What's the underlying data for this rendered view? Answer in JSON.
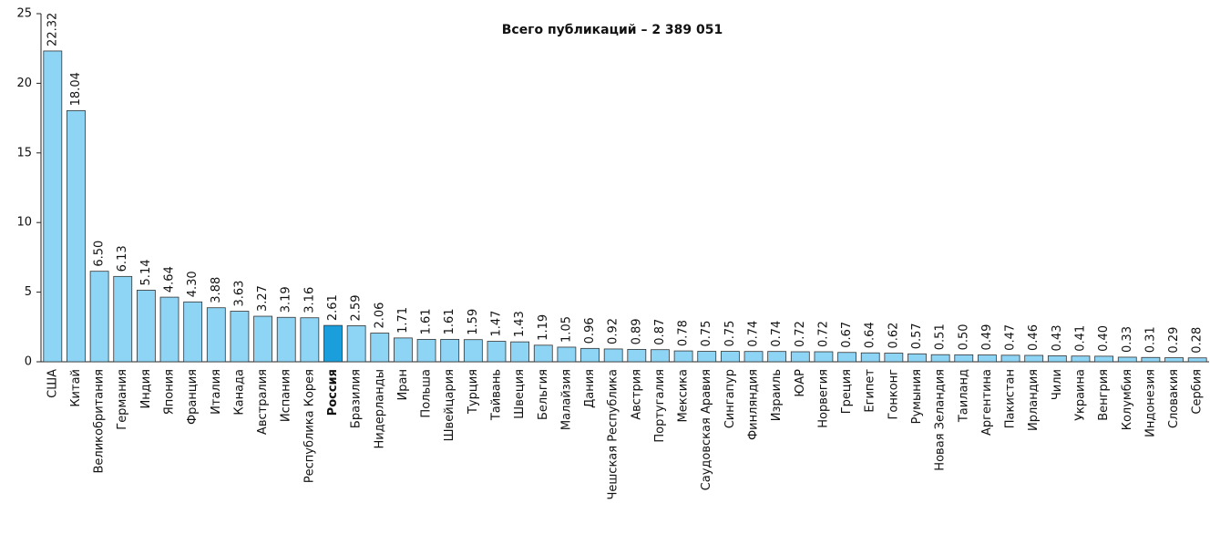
{
  "chart_data": {
    "type": "bar",
    "title": "Всего публикаций – 2 389 051",
    "categories": [
      "США",
      "Китай",
      "Великобритания",
      "Германия",
      "Индия",
      "Япония",
      "Франция",
      "Италия",
      "Канада",
      "Австралия",
      "Испания",
      "Республика Корея",
      "Россия",
      "Бразилия",
      "Нидерланды",
      "Иран",
      "Польша",
      "Швейцария",
      "Турция",
      "Тайвань",
      "Швеция",
      "Бельгия",
      "Малайзия",
      "Дания",
      "Чешская Республика",
      "Австрия",
      "Португалия",
      "Мексика",
      "Саудовская Аравия",
      "Сингапур",
      "Финляндия",
      "Израиль",
      "ЮАР",
      "Норвегия",
      "Греция",
      "Египет",
      "Гонконг",
      "Румыния",
      "Новая Зеландия",
      "Таиланд",
      "Аргентина",
      "Пакистан",
      "Ирландия",
      "Чили",
      "Украина",
      "Венгрия",
      "Колумбия",
      "Индонезия",
      "Словакия",
      "Сербия"
    ],
    "values": [
      22.32,
      18.04,
      6.5,
      6.13,
      5.14,
      4.64,
      4.3,
      3.88,
      3.63,
      3.27,
      3.19,
      3.16,
      2.61,
      2.59,
      2.06,
      1.71,
      1.61,
      1.61,
      1.59,
      1.47,
      1.43,
      1.19,
      1.05,
      0.96,
      0.92,
      0.89,
      0.87,
      0.78,
      0.75,
      0.75,
      0.74,
      0.74,
      0.72,
      0.72,
      0.67,
      0.64,
      0.62,
      0.57,
      0.51,
      0.5,
      0.49,
      0.47,
      0.46,
      0.43,
      0.41,
      0.4,
      0.33,
      0.31,
      0.29,
      0.28
    ],
    "value_labels": [
      "22.32",
      "18.04",
      "6.50",
      "6.13",
      "5.14",
      "4.64",
      "4.30",
      "3.88",
      "3.63",
      "3.27",
      "3.19",
      "3.16",
      "2.61",
      "2.59",
      "2.06",
      "1.71",
      "1.61",
      "1.61",
      "1.59",
      "1.47",
      "1.43",
      "1.19",
      "1.05",
      "0.96",
      "0.92",
      "0.89",
      "0.87",
      "0.78",
      "0.75",
      "0.75",
      "0.74",
      "0.74",
      "0.72",
      "0.72",
      "0.67",
      "0.64",
      "0.62",
      "0.57",
      "0.51",
      "0.50",
      "0.49",
      "0.47",
      "0.46",
      "0.43",
      "0.41",
      "0.40",
      "0.33",
      "0.31",
      "0.29",
      "0.28"
    ],
    "color": "#8dd4f5",
    "highlight": {
      "index": 12,
      "color": "#1a9fdc"
    },
    "ylim": [
      0,
      25
    ],
    "yticks": [
      0,
      5,
      10,
      15,
      20,
      25
    ],
    "grid": false
  }
}
